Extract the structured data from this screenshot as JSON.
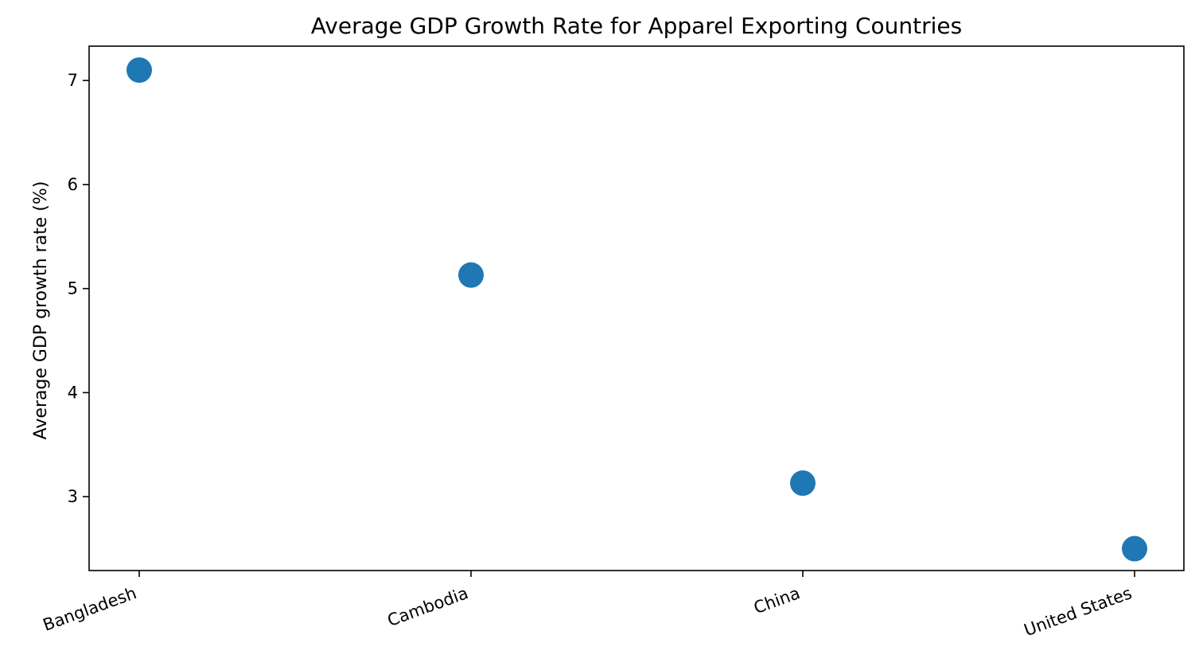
{
  "chart_data": {
    "type": "scatter",
    "title": "Average GDP Growth Rate for Apparel Exporting Countries",
    "xlabel": "",
    "ylabel": "Average GDP growth rate (%)",
    "categories": [
      "Bangladesh",
      "Cambodia",
      "China",
      "United States"
    ],
    "values": [
      7.1,
      5.13,
      3.13,
      2.5
    ],
    "yticks": [
      3,
      4,
      5,
      6,
      7
    ],
    "ylim": [
      2.29,
      7.33
    ],
    "grid": false,
    "legend": "none",
    "colors": {
      "marker": "#1f77b4",
      "axes": "#000000",
      "background": "#ffffff"
    }
  }
}
